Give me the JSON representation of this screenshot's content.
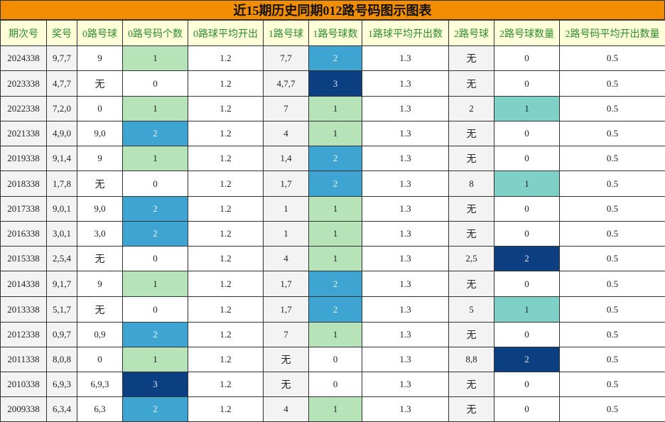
{
  "title": "近15期历史同期012路号码图示图表",
  "headers": [
    "期次号",
    "奖号",
    "0路号球",
    "0路号码个数",
    "0路球平均开出",
    "1路号球",
    "1路号球数",
    "1路球平均开出数",
    "2路号球",
    "2路号球数量",
    "2路号码平均开出数量"
  ],
  "rows": [
    [
      "2024338",
      "9,7,7",
      "9",
      "1",
      "1.2",
      "7,7",
      "2",
      "1.3",
      "无",
      "0",
      "0.5"
    ],
    [
      "2023338",
      "4,7,7",
      "无",
      "0",
      "1.2",
      "4,7,7",
      "3",
      "1.3",
      "无",
      "0",
      "0.5"
    ],
    [
      "2022338",
      "7,2,0",
      "0",
      "1",
      "1.2",
      "7",
      "1",
      "1.3",
      "2",
      "1",
      "0.5"
    ],
    [
      "2021338",
      "4,9,0",
      "9,0",
      "2",
      "1.2",
      "4",
      "1",
      "1.3",
      "无",
      "0",
      "0.5"
    ],
    [
      "2019338",
      "9,1,4",
      "9",
      "1",
      "1.2",
      "1,4",
      "2",
      "1.3",
      "无",
      "0",
      "0.5"
    ],
    [
      "2018338",
      "1,7,8",
      "无",
      "0",
      "1.2",
      "1,7",
      "2",
      "1.3",
      "8",
      "1",
      "0.5"
    ],
    [
      "2017338",
      "9,0,1",
      "9,0",
      "2",
      "1.2",
      "1",
      "1",
      "1.3",
      "无",
      "0",
      "0.5"
    ],
    [
      "2016338",
      "3,0,1",
      "3,0",
      "2",
      "1.2",
      "1",
      "1",
      "1.3",
      "无",
      "0",
      "0.5"
    ],
    [
      "2015338",
      "2,5,4",
      "无",
      "0",
      "1.2",
      "4",
      "1",
      "1.3",
      "2,5",
      "2",
      "0.5"
    ],
    [
      "2014338",
      "9,1,7",
      "9",
      "1",
      "1.2",
      "1,7",
      "2",
      "1.3",
      "无",
      "0",
      "0.5"
    ],
    [
      "2013338",
      "5,1,7",
      "无",
      "0",
      "1.2",
      "1,7",
      "2",
      "1.3",
      "5",
      "1",
      "0.5"
    ],
    [
      "2012338",
      "0,9,7",
      "0,9",
      "2",
      "1.2",
      "7",
      "1",
      "1.3",
      "无",
      "0",
      "0.5"
    ],
    [
      "2011338",
      "8,0,8",
      "0",
      "1",
      "1.2",
      "无",
      "0",
      "1.3",
      "8,8",
      "2",
      "0.5"
    ],
    [
      "2010338",
      "6,9,3",
      "6,9,3",
      "3",
      "1.2",
      "无",
      "0",
      "1.3",
      "无",
      "0",
      "0.5"
    ],
    [
      "2009338",
      "6,3,4",
      "6,3",
      "2",
      "1.2",
      "4",
      "1",
      "1.3",
      "无",
      "0",
      "0.5"
    ]
  ],
  "colors": {
    "title_bg": "#f28d00",
    "header_bg": "#fefed8",
    "header_text": "#2e8b2e",
    "count_1": "#b6e3b8",
    "count_2": "#3ea4d2",
    "count_3": "#0b3f82",
    "route2_count_1": "#7fd0c6",
    "route2_count_2": "#0b3f82"
  }
}
